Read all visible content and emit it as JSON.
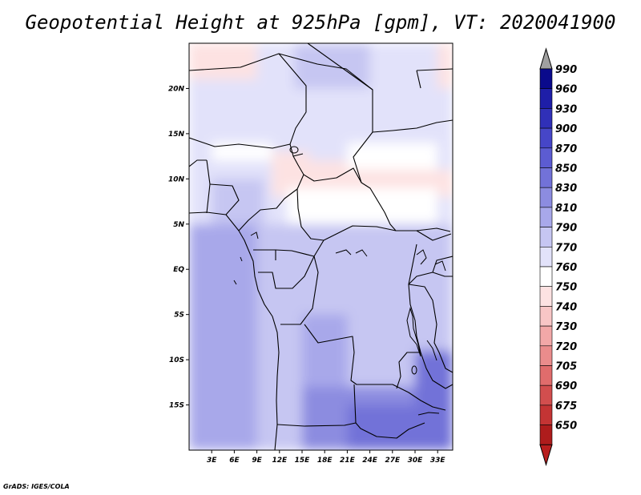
{
  "chart_data": {
    "type": "heatmap",
    "title": "Geopotential Height at 925hPa [gpm], VT: 2020041900",
    "xlabel": "",
    "ylabel": "",
    "xlim": [
      0,
      35
    ],
    "ylim": [
      -20,
      25
    ],
    "x_ticks": [
      3,
      6,
      9,
      12,
      15,
      18,
      21,
      24,
      27,
      30,
      33
    ],
    "x_tick_labels": [
      "3E",
      "6E",
      "9E",
      "12E",
      "15E",
      "18E",
      "21E",
      "24E",
      "27E",
      "30E",
      "33E"
    ],
    "y_ticks": [
      20,
      15,
      10,
      5,
      0,
      -5,
      -10,
      -15
    ],
    "y_tick_labels": [
      "20N",
      "15N",
      "10N",
      "5N",
      "EQ",
      "5S",
      "10S",
      "15S"
    ],
    "colorbar": {
      "levels": [
        "990",
        "960",
        "930",
        "900",
        "870",
        "850",
        "830",
        "810",
        "790",
        "770",
        "760",
        "750",
        "740",
        "730",
        "720",
        "705",
        "690",
        "675",
        "650"
      ],
      "colors": [
        "#0a0a8c",
        "#1e1ea8",
        "#3030b8",
        "#4646c8",
        "#5c5cd2",
        "#7272d8",
        "#8c8ce0",
        "#a8a8ea",
        "#c6c6f2",
        "#e2e2fa",
        "#ffffff",
        "#fde2e2",
        "#f8c6c6",
        "#f2a8a8",
        "#ea8c8c",
        "#e06c6c",
        "#d24e4e",
        "#c43434",
        "#ae1c1c"
      ],
      "over_color": "#a0a0a0",
      "under_color": "#b81e1e"
    },
    "field_regions": [
      {
        "level": "760",
        "lon": [
          0,
          35
        ],
        "lat": [
          -20,
          25
        ]
      },
      {
        "level": "770",
        "lon": [
          0,
          35
        ],
        "lat": [
          5,
          25
        ]
      },
      {
        "level": "750",
        "lon": [
          0,
          9
        ],
        "lat": [
          21,
          25
        ]
      },
      {
        "level": "750",
        "lon": [
          11,
          16
        ],
        "lat": [
          8,
          13
        ]
      },
      {
        "level": "750",
        "lon": [
          15,
          23
        ],
        "lat": [
          9,
          12
        ]
      },
      {
        "level": "750",
        "lon": [
          23,
          35
        ],
        "lat": [
          8,
          11
        ]
      },
      {
        "level": "750",
        "lon": [
          33,
          35
        ],
        "lat": [
          20,
          25
        ]
      },
      {
        "level": "760",
        "lon": [
          3,
          11
        ],
        "lat": [
          12,
          14
        ]
      },
      {
        "level": "760",
        "lon": [
          13,
          33
        ],
        "lat": [
          5,
          9
        ]
      },
      {
        "level": "760",
        "lon": [
          21,
          33
        ],
        "lat": [
          11,
          14
        ]
      },
      {
        "level": "790",
        "lon": [
          14,
          24
        ],
        "lat": [
          20,
          25
        ]
      },
      {
        "level": "790",
        "lon": [
          3,
          10
        ],
        "lat": [
          5,
          10
        ]
      },
      {
        "level": "770",
        "lon": [
          10,
          35
        ],
        "lat": [
          -10,
          5
        ]
      },
      {
        "level": "790",
        "lon": [
          0,
          35
        ],
        "lat": [
          -20,
          5
        ]
      },
      {
        "level": "810",
        "lon": [
          0,
          9
        ],
        "lat": [
          -20,
          5
        ]
      },
      {
        "level": "810",
        "lon": [
          15,
          21
        ],
        "lat": [
          -15,
          -5
        ]
      },
      {
        "level": "830",
        "lon": [
          15,
          35
        ],
        "lat": [
          -20,
          -13
        ]
      },
      {
        "level": "850",
        "lon": [
          21,
          35
        ],
        "lat": [
          -20,
          -15
        ]
      },
      {
        "level": "850",
        "lon": [
          30,
          35
        ],
        "lat": [
          -15,
          -9
        ]
      }
    ]
  },
  "credit": "GrADS: IGES/COLA"
}
